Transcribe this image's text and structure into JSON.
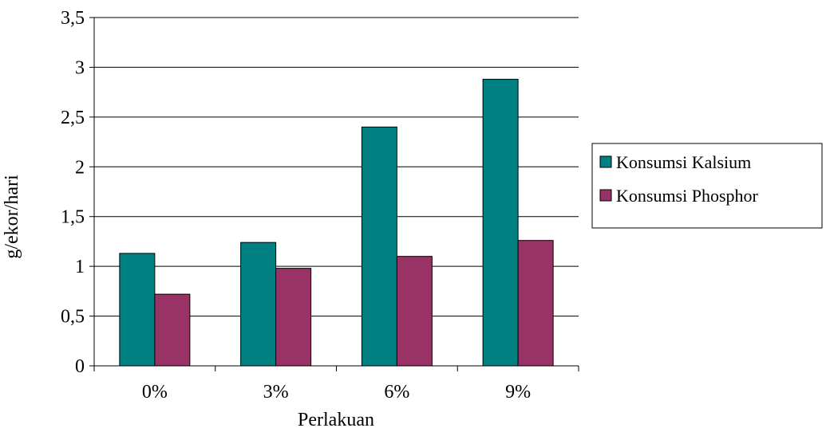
{
  "colors": {
    "background": "#ffffff",
    "gridline": "#000000",
    "axis": "#000000",
    "bar_outline": "#000000"
  },
  "chart_data": {
    "type": "bar",
    "title": "",
    "xlabel": "Perlakuan",
    "ylabel": "g/ekor/hari",
    "categories": [
      "0%",
      "3%",
      "6%",
      "9%"
    ],
    "series": [
      {
        "name": "Konsumsi Kalsium",
        "color": "#008080",
        "values": [
          1.13,
          1.24,
          2.4,
          2.88
        ]
      },
      {
        "name": "Konsumsi Phosphor",
        "color": "#993366",
        "values": [
          0.72,
          0.98,
          1.1,
          1.26
        ]
      }
    ],
    "ylim": [
      0,
      3.5
    ],
    "yticks": [
      0,
      0.5,
      1,
      1.5,
      2,
      2.5,
      3,
      3.5
    ],
    "ytick_labels": [
      "0",
      "0,5",
      "1",
      "1,5",
      "2",
      "2,5",
      "3",
      "3,5"
    ],
    "grid": true,
    "legend_position": "right"
  }
}
